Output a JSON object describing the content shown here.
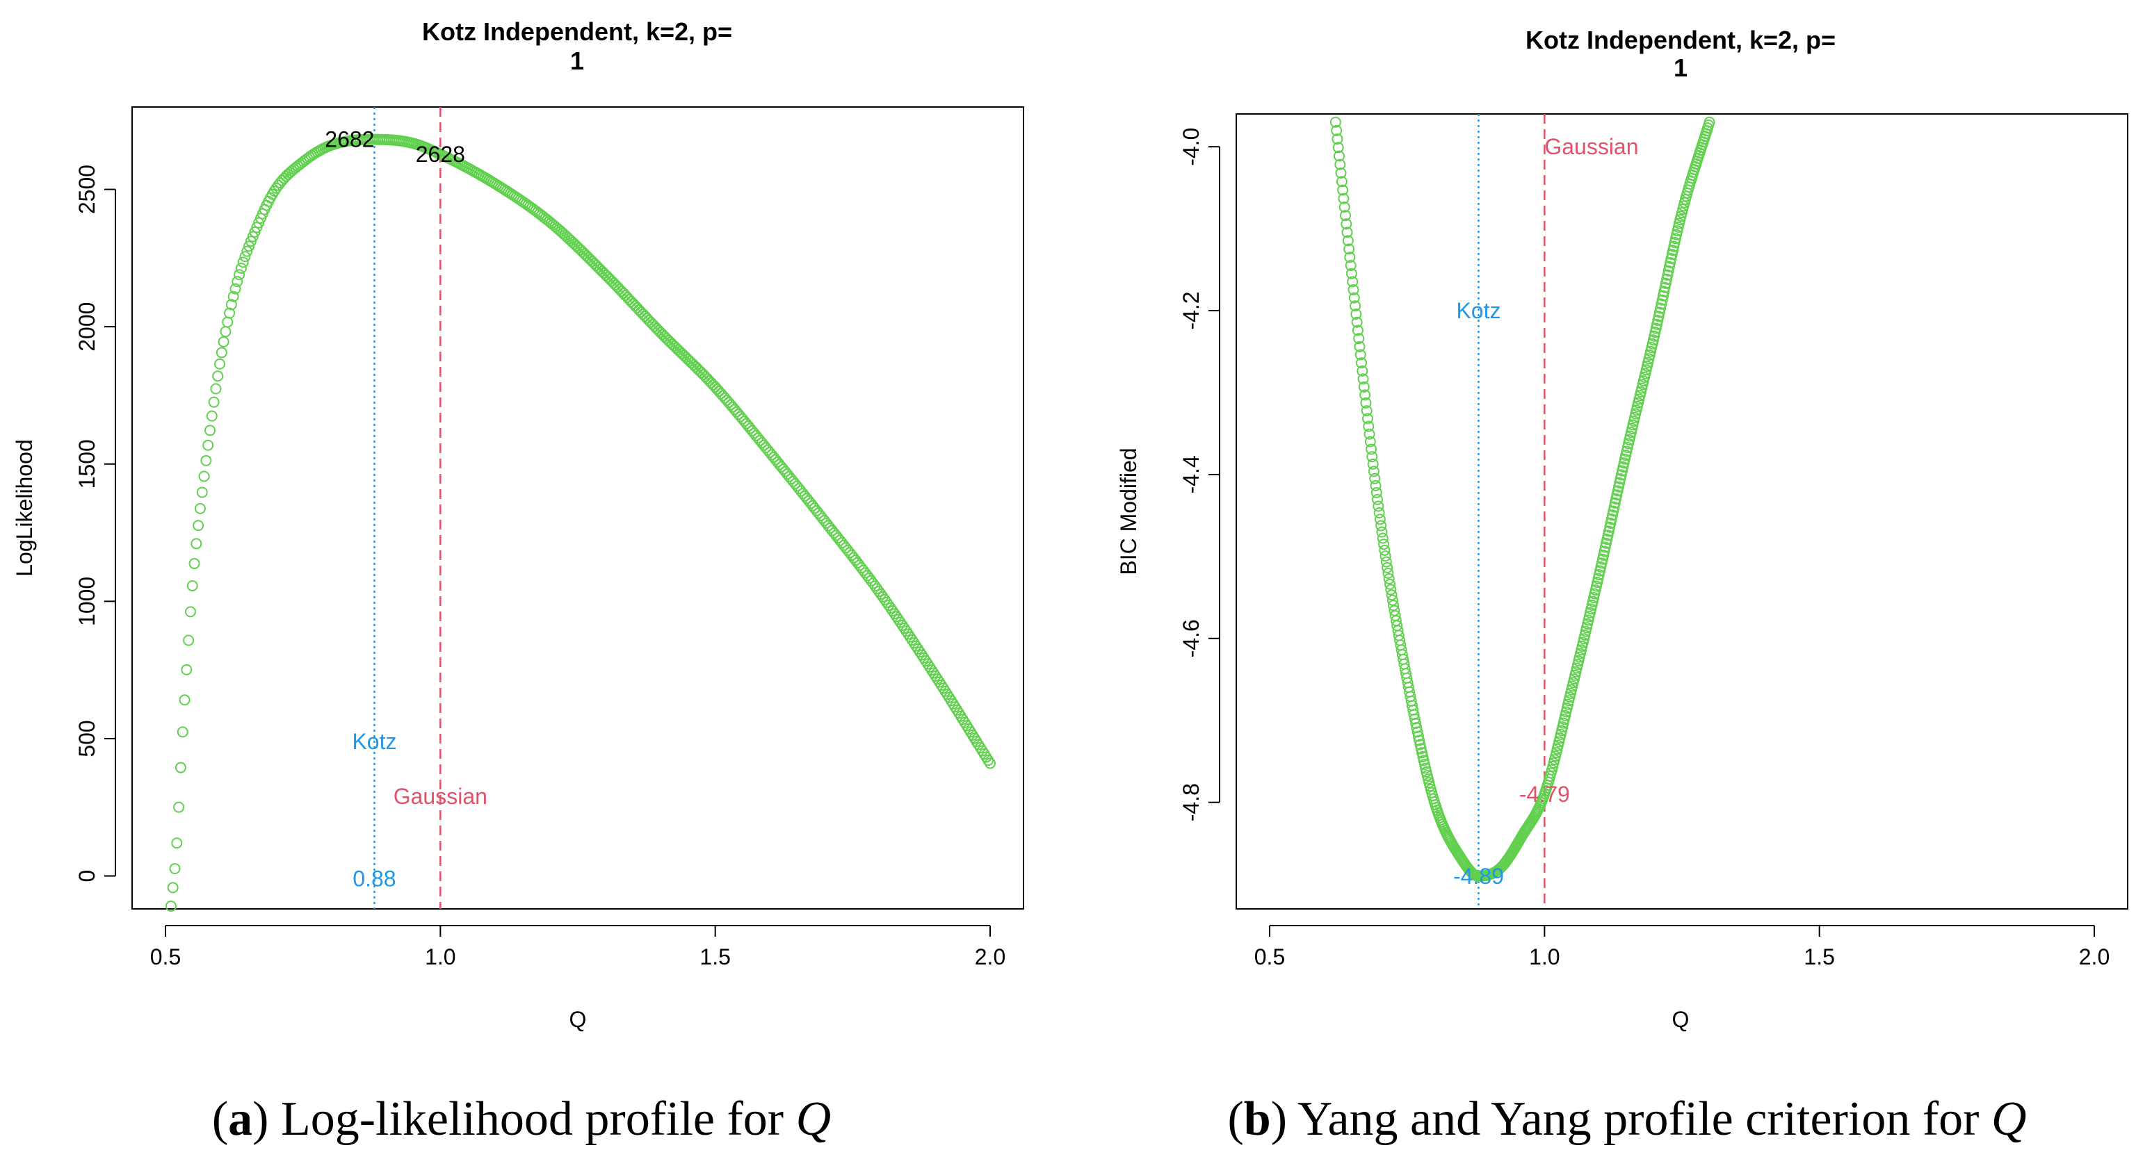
{
  "colors": {
    "points": "#61D04F",
    "kotz": "#2297E6",
    "gaussian": "#DF536B",
    "text": "#000000"
  },
  "chart_data": [
    {
      "id": "a",
      "type": "scatter",
      "title_line1": "Kotz Independent, k=2, p=",
      "title_line2": "1",
      "xlabel": "Q",
      "ylabel": "LogLikelihood",
      "xlim": [
        0.5,
        2.0
      ],
      "ylim": [
        -120,
        2800
      ],
      "xticks": [
        0.5,
        1.0,
        1.5,
        2.0
      ],
      "xtick_labels": [
        "0.5",
        "1.0",
        "1.5",
        "2.0"
      ],
      "yticks": [
        0,
        500,
        1000,
        1500,
        2000,
        2500
      ],
      "ytick_labels": [
        "0",
        "500",
        "1000",
        "1500",
        "2000",
        "2500"
      ],
      "series": [
        {
          "name": "profile",
          "marker": "open-circle",
          "x": [
            0.51,
            0.52,
            0.53,
            0.54,
            0.55,
            0.57,
            0.6,
            0.63,
            0.67,
            0.7,
            0.75,
            0.8,
            0.88,
            0.95,
            1.0,
            1.1,
            1.2,
            1.3,
            1.4,
            1.5,
            1.6,
            1.7,
            1.8,
            1.9,
            2.0
          ],
          "y": [
            -110,
            100,
            480,
            800,
            1080,
            1450,
            1880,
            2160,
            2380,
            2500,
            2600,
            2660,
            2682,
            2668,
            2628,
            2520,
            2380,
            2190,
            1980,
            1780,
            1540,
            1290,
            1030,
            730,
            410
          ]
        }
      ],
      "vlines": [
        {
          "name": "Kotz",
          "x": 0.88,
          "style": "dotted",
          "color_key": "kotz"
        },
        {
          "name": "Gaussian",
          "x": 1.0,
          "style": "dashed",
          "color_key": "gaussian"
        }
      ],
      "annotations": [
        {
          "text": "2682",
          "x": 0.88,
          "y": 2682,
          "color_key": "text",
          "anchor": "end"
        },
        {
          "text": "2628",
          "x": 1.0,
          "y": 2628,
          "color_key": "text",
          "anchor": "middle"
        },
        {
          "text": "Kotz",
          "x": 0.88,
          "y": 490,
          "color_key": "kotz",
          "anchor": "middle"
        },
        {
          "text": "Gaussian",
          "x": 1.0,
          "y": 290,
          "color_key": "gaussian",
          "anchor": "middle"
        },
        {
          "text": "0.88",
          "x": 0.88,
          "y": -10,
          "color_key": "kotz",
          "anchor": "middle"
        }
      ],
      "caption_tag": "a",
      "caption_text": ") Log-likelihood profile for ",
      "caption_var": "Q"
    },
    {
      "id": "b",
      "type": "scatter",
      "title_line1": "Kotz Independent, k=2, p=",
      "title_line2": "1",
      "xlabel": "Q",
      "ylabel": "BIC Modified",
      "xlim": [
        0.5,
        2.0
      ],
      "ylim": [
        -4.93,
        -3.96
      ],
      "xticks": [
        0.5,
        1.0,
        1.5,
        2.0
      ],
      "xtick_labels": [
        "0.5",
        "1.0",
        "1.5",
        "2.0"
      ],
      "yticks": [
        -4.8,
        -4.6,
        -4.4,
        -4.2,
        -4.0
      ],
      "ytick_labels": [
        "-4.8",
        "-4.6",
        "-4.4",
        "-4.2",
        "-4.0"
      ],
      "series": [
        {
          "name": "profile",
          "marker": "open-circle",
          "x": [
            0.62,
            0.65,
            0.7,
            0.75,
            0.8,
            0.85,
            0.88,
            0.92,
            0.96,
            1.0,
            1.05,
            1.1,
            1.15,
            1.2,
            1.25,
            1.3
          ],
          "y": [
            -3.97,
            -4.16,
            -4.45,
            -4.65,
            -4.8,
            -4.87,
            -4.89,
            -4.88,
            -4.84,
            -4.79,
            -4.66,
            -4.52,
            -4.37,
            -4.23,
            -4.08,
            -3.97
          ]
        }
      ],
      "vlines": [
        {
          "name": "Kotz",
          "x": 0.88,
          "style": "dotted",
          "color_key": "kotz"
        },
        {
          "name": "Gaussian",
          "x": 1.0,
          "style": "dashed",
          "color_key": "gaussian"
        }
      ],
      "annotations": [
        {
          "text": "Gaussian",
          "x": 1.0,
          "y": -4.0,
          "color_key": "gaussian",
          "anchor": "start"
        },
        {
          "text": "Kotz",
          "x": 0.88,
          "y": -4.2,
          "color_key": "kotz",
          "anchor": "middle"
        },
        {
          "text": "-4.79",
          "x": 1.0,
          "y": -4.79,
          "color_key": "gaussian",
          "anchor": "middle"
        },
        {
          "text": "-4.89",
          "x": 0.88,
          "y": -4.89,
          "color_key": "kotz",
          "anchor": "middle"
        }
      ],
      "caption_tag": "b",
      "caption_text": ") Yang and Yang profile criterion for ",
      "caption_var": "Q"
    }
  ]
}
